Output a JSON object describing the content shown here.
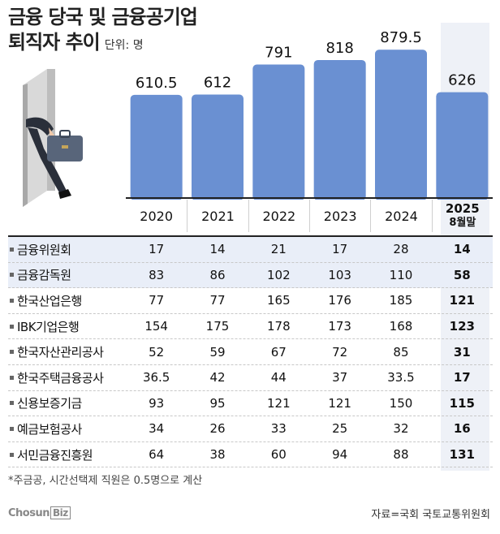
{
  "title": {
    "line1": "금융 당국 및 금융공기업",
    "line2": "퇴직자 추이",
    "unit": "단위: 명"
  },
  "chart_data": {
    "type": "bar",
    "title": "금융 당국 및 금융공기업 퇴직자 추이",
    "unit": "단위: 명",
    "categories": [
      "2020",
      "2021",
      "2022",
      "2023",
      "2024",
      "2025 8월말"
    ],
    "values": [
      610.5,
      612,
      791,
      818,
      879.5,
      626
    ],
    "value_labels": [
      "610.5",
      "612",
      "791",
      "818",
      "879.5",
      "626"
    ],
    "ylim": [
      0,
      900
    ],
    "bar_color": "#6a90d2",
    "highlight_color": "#eef1f7"
  },
  "year_labels": [
    {
      "main": "2020"
    },
    {
      "main": "2021"
    },
    {
      "main": "2022"
    },
    {
      "main": "2023"
    },
    {
      "main": "2024"
    },
    {
      "main": "2025",
      "sub": "8월말"
    }
  ],
  "table": {
    "rows": [
      {
        "name": "금융위원회",
        "values": [
          "17",
          "14",
          "21",
          "17",
          "28",
          "14"
        ],
        "highlight": true
      },
      {
        "name": "금융감독원",
        "values": [
          "83",
          "86",
          "102",
          "103",
          "110",
          "58"
        ],
        "highlight": true
      },
      {
        "name": "한국산업은행",
        "values": [
          "77",
          "77",
          "165",
          "176",
          "185",
          "121"
        ]
      },
      {
        "name": "IBK기업은행",
        "values": [
          "154",
          "175",
          "178",
          "173",
          "168",
          "123"
        ]
      },
      {
        "name": "한국자산관리공사",
        "values": [
          "52",
          "59",
          "67",
          "72",
          "85",
          "31"
        ]
      },
      {
        "name": "한국주택금융공사",
        "values": [
          "36.5",
          "42",
          "44",
          "37",
          "33.5",
          "17"
        ]
      },
      {
        "name": "신용보증기금",
        "values": [
          "93",
          "95",
          "121",
          "121",
          "150",
          "115"
        ]
      },
      {
        "name": "예금보험공사",
        "values": [
          "34",
          "26",
          "33",
          "25",
          "32",
          "16"
        ]
      },
      {
        "name": "서민금융진흥원",
        "values": [
          "64",
          "38",
          "60",
          "94",
          "88",
          "131"
        ]
      }
    ]
  },
  "footnote": "*주금공, 시간선택제 직원은 0.5명으로 계산",
  "logo": {
    "main": "Chosun",
    "boxed": "Biz"
  },
  "source": "자료=국회 국토교통위원회",
  "icons": {
    "illustration": "person-leaving-door-icon"
  }
}
